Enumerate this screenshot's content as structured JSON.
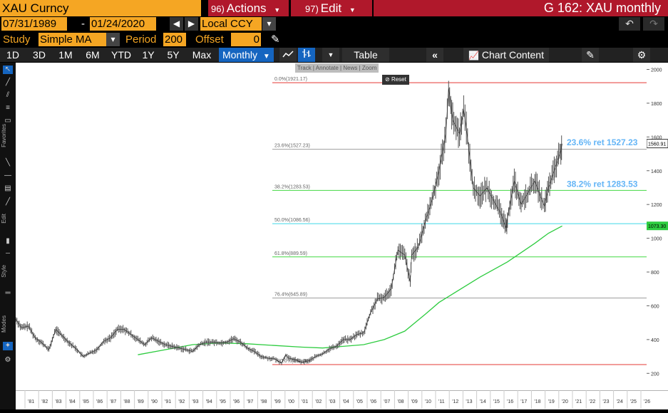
{
  "top_bar": {
    "ticker": "XAU Curncy",
    "actions_num": "96)",
    "actions_label": "Actions",
    "edit_num": "97)",
    "edit_label": "Edit",
    "window_title": "G 162: XAU monthly"
  },
  "date_bar": {
    "start_date": "07/31/1989",
    "separator": "-",
    "end_date": "01/24/2020",
    "currency": "Local CCY"
  },
  "study_bar": {
    "study_label": "Study",
    "study_value": "Simple MA",
    "period_label": "Period",
    "period_value": "200",
    "offset_label": "Offset",
    "offset_value": "0"
  },
  "period_bar": {
    "buttons": [
      "1D",
      "3D",
      "1M",
      "6M",
      "YTD",
      "1Y",
      "5Y",
      "Max"
    ],
    "frequency": "Monthly",
    "table_label": "Table",
    "chart_content_label": "Chart Content"
  },
  "sidebar": {
    "favorites_label": "Favorites",
    "edit_label": "Edit",
    "style_label": "Style",
    "modes_label": "Modes"
  },
  "mini_toolbar": {
    "track": "Track",
    "annotate": "Annotate",
    "news": "News",
    "zoom": "Zoom",
    "reset": "Reset"
  },
  "chart_data": {
    "type": "line",
    "yticks": [
      200,
      400,
      600,
      800,
      1000,
      1200,
      1400,
      1600,
      1800,
      2000
    ],
    "ylim": [
      100,
      2040
    ],
    "xticks": [
      "'81",
      "'82",
      "'83",
      "'84",
      "'85",
      "'86",
      "'87",
      "'88",
      "'89",
      "'90",
      "'91",
      "'92",
      "'93",
      "'94",
      "'95",
      "'96",
      "'97",
      "'98",
      "'99",
      "'00",
      "'01",
      "'02",
      "'03",
      "'04",
      "'05",
      "'06",
      "'07",
      "'08",
      "'09",
      "'10",
      "'11",
      "'12",
      "'13",
      "'14",
      "'15",
      "'16",
      "'17",
      "'18",
      "'19",
      "'20",
      "'21",
      "'22",
      "'23",
      "'24",
      "'25",
      "'26"
    ],
    "price_series": [
      [
        1980.0,
        530
      ],
      [
        1980.5,
        470
      ],
      [
        1981.0,
        480
      ],
      [
        1981.5,
        410
      ],
      [
        1982.0,
        380
      ],
      [
        1982.5,
        340
      ],
      [
        1983.0,
        460
      ],
      [
        1983.5,
        420
      ],
      [
        1984.0,
        380
      ],
      [
        1984.5,
        345
      ],
      [
        1985.0,
        300
      ],
      [
        1985.5,
        320
      ],
      [
        1986.0,
        340
      ],
      [
        1986.5,
        390
      ],
      [
        1987.0,
        410
      ],
      [
        1987.5,
        460
      ],
      [
        1988.0,
        460
      ],
      [
        1988.5,
        430
      ],
      [
        1989.0,
        400
      ],
      [
        1989.5,
        370
      ],
      [
        1990.0,
        410
      ],
      [
        1990.5,
        390
      ],
      [
        1991.0,
        370
      ],
      [
        1991.5,
        360
      ],
      [
        1992.0,
        350
      ],
      [
        1992.5,
        340
      ],
      [
        1993.0,
        330
      ],
      [
        1993.5,
        370
      ],
      [
        1994.0,
        385
      ],
      [
        1994.5,
        385
      ],
      [
        1995.0,
        380
      ],
      [
        1995.5,
        385
      ],
      [
        1996.0,
        405
      ],
      [
        1996.5,
        385
      ],
      [
        1997.0,
        350
      ],
      [
        1997.5,
        330
      ],
      [
        1998.0,
        300
      ],
      [
        1998.5,
        290
      ],
      [
        1999.0,
        285
      ],
      [
        1999.5,
        260
      ],
      [
        1999.8,
        310
      ],
      [
        2000.0,
        290
      ],
      [
        2000.5,
        280
      ],
      [
        2001.0,
        265
      ],
      [
        2001.5,
        275
      ],
      [
        2002.0,
        300
      ],
      [
        2002.5,
        315
      ],
      [
        2003.0,
        345
      ],
      [
        2003.5,
        360
      ],
      [
        2004.0,
        400
      ],
      [
        2004.5,
        400
      ],
      [
        2005.0,
        430
      ],
      [
        2005.5,
        440
      ],
      [
        2006.0,
        560
      ],
      [
        2006.5,
        640
      ],
      [
        2007.0,
        650
      ],
      [
        2007.5,
        700
      ],
      [
        2008.0,
        930
      ],
      [
        2008.5,
        900
      ],
      [
        2008.9,
        740
      ],
      [
        2009.0,
        900
      ],
      [
        2009.5,
        950
      ],
      [
        2010.0,
        1100
      ],
      [
        2010.5,
        1230
      ],
      [
        2011.0,
        1400
      ],
      [
        2011.5,
        1620
      ],
      [
        2011.7,
        1890
      ],
      [
        2012.0,
        1700
      ],
      [
        2012.5,
        1620
      ],
      [
        2012.8,
        1760
      ],
      [
        2013.0,
        1650
      ],
      [
        2013.5,
        1300
      ],
      [
        2014.0,
        1250
      ],
      [
        2014.5,
        1300
      ],
      [
        2015.0,
        1220
      ],
      [
        2015.5,
        1150
      ],
      [
        2015.9,
        1060
      ],
      [
        2016.0,
        1120
      ],
      [
        2016.5,
        1340
      ],
      [
        2017.0,
        1200
      ],
      [
        2017.5,
        1270
      ],
      [
        2018.0,
        1340
      ],
      [
        2018.5,
        1230
      ],
      [
        2018.7,
        1190
      ],
      [
        2019.0,
        1300
      ],
      [
        2019.5,
        1420
      ],
      [
        2019.9,
        1520
      ],
      [
        2020.0,
        1560
      ]
    ],
    "ma_series": [
      [
        1989.0,
        310
      ],
      [
        1991.0,
        340
      ],
      [
        1993.0,
        370
      ],
      [
        1995.0,
        380
      ],
      [
        1997.0,
        375
      ],
      [
        1999.0,
        365
      ],
      [
        2001.0,
        355
      ],
      [
        2002.5,
        350
      ],
      [
        2004.0,
        360
      ],
      [
        2005.5,
        370
      ],
      [
        2007.0,
        400
      ],
      [
        2008.5,
        450
      ],
      [
        2010.0,
        550
      ],
      [
        2011.0,
        620
      ],
      [
        2012.0,
        670
      ],
      [
        2014.0,
        770
      ],
      [
        2016.0,
        860
      ],
      [
        2018.0,
        970
      ],
      [
        2019.0,
        1030
      ],
      [
        2020.0,
        1073
      ]
    ],
    "fib_levels": [
      {
        "label": "0.0%(1921.17)",
        "value": 1921.17,
        "color": "#e53935"
      },
      {
        "label": "23.6%(1527.23)",
        "value": 1527.23,
        "color": "#9e9e9e"
      },
      {
        "label": "38.2%(1283.53)",
        "value": 1283.53,
        "color": "#43d843"
      },
      {
        "label": "50.0%(1086.56)",
        "value": 1086.56,
        "color": "#3fd8e8"
      },
      {
        "label": "61.8%(889.59)",
        "value": 889.59,
        "color": "#43d843"
      },
      {
        "label": "76.4%(645.89)",
        "value": 645.89,
        "color": "#9e9e9e"
      },
      {
        "label": "100.0%(252.06)",
        "value": 252.06,
        "color": "#e53935"
      }
    ],
    "annotations": [
      {
        "text": "23.6% ret 1527.23",
        "value": 1550
      },
      {
        "text": "38.2% ret 1283.53",
        "value": 1305
      }
    ],
    "last_price_label": "1560.91",
    "last_price": 1560.91,
    "ma_last_label": "1073.30",
    "ma_last": 1073.3,
    "colors": {
      "price": "#555555",
      "ma": "#2ecc40",
      "annotation": "#64b5f6"
    }
  }
}
